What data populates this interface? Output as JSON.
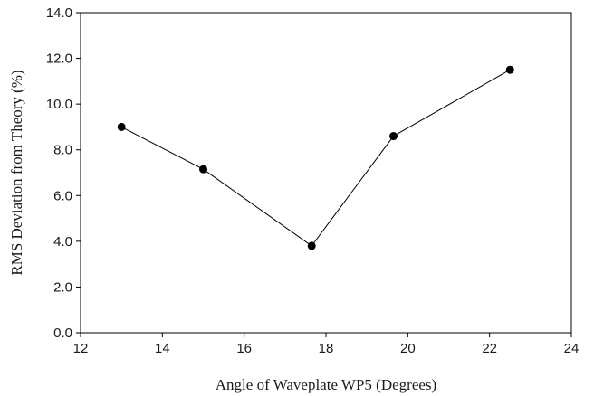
{
  "chart_data": {
    "type": "line",
    "title": "",
    "xlabel": "Angle of Waveplate WP5 (Degrees)",
    "ylabel": "RMS Deviation from Theory (%)",
    "xlim": [
      12,
      24
    ],
    "ylim": [
      0,
      14
    ],
    "xticks": [
      12,
      14,
      16,
      18,
      20,
      22,
      24
    ],
    "yticks": [
      0,
      2,
      4,
      6,
      8,
      10,
      12,
      14
    ],
    "xtick_labels": [
      "12",
      "14",
      "16",
      "18",
      "20",
      "22",
      "24"
    ],
    "ytick_labels": [
      "0.0",
      "2.0",
      "4.0",
      "6.0",
      "8.0",
      "10.0",
      "12.0",
      "14.0"
    ],
    "grid": false,
    "series": [
      {
        "x": [
          13.0,
          15.0,
          17.65,
          19.65,
          22.5
        ],
        "y": [
          9.0,
          7.15,
          3.8,
          8.6,
          11.5
        ],
        "color": "#000000",
        "marker": "circle"
      }
    ]
  }
}
